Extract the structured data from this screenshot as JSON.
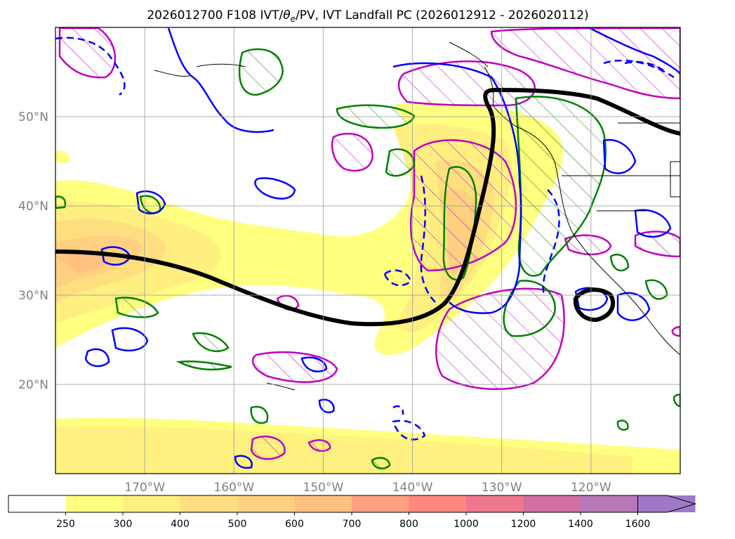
{
  "title": {
    "prefix": "2026012700 F108 IVT/",
    "theta": "θ",
    "theta_sub": "e",
    "suffix": "/PV, IVT Landfall PC (2026012912 - 2026020112)"
  },
  "map": {
    "lon_range": [
      -180,
      -110
    ],
    "lat_range": [
      10,
      60
    ],
    "lon_ticks": [
      {
        "lon": -170,
        "label": "170°W"
      },
      {
        "lon": -160,
        "label": "160°W"
      },
      {
        "lon": -150,
        "label": "150°W"
      },
      {
        "lon": -140,
        "label": "140°W"
      },
      {
        "lon": -130,
        "label": "130°W"
      },
      {
        "lon": -120,
        "label": "120°W"
      }
    ],
    "lat_ticks": [
      {
        "lat": 20,
        "label": "20°N"
      },
      {
        "lat": 30,
        "label": "30°N"
      },
      {
        "lat": 40,
        "label": "40°N"
      },
      {
        "lat": 50,
        "label": "50°N"
      }
    ],
    "grid": true,
    "contour_colors": {
      "theta_e": "#0000ff",
      "pv": "#008000",
      "ivt_pc": "#bf00bf",
      "landfall_line": "#000000"
    }
  },
  "colorbar": {
    "levels": [
      "250",
      "300",
      "400",
      "500",
      "600",
      "700",
      "800",
      "1000",
      "1200",
      "1400",
      "1600"
    ],
    "colors": [
      "#ffffff",
      "#ffff80",
      "#ffef80",
      "#ffde80",
      "#ffd080",
      "#ffc080",
      "#ffa080",
      "#ff8880",
      "#ee7890",
      "#d070a0",
      "#b878b8",
      "#a078c8"
    ]
  }
}
